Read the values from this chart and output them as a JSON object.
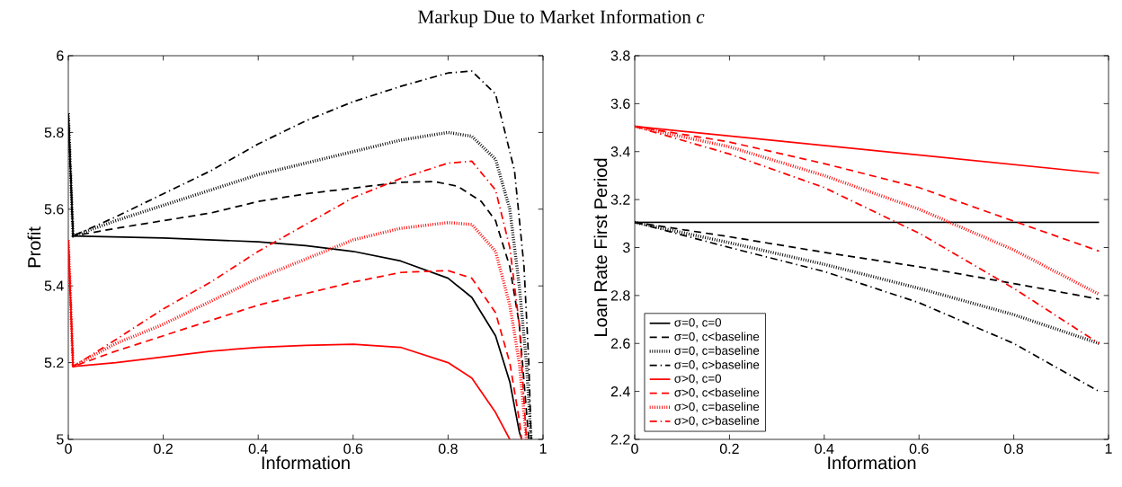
{
  "chart_data": [
    {
      "type": "line",
      "title": "Markup Due to Market Information *c*",
      "xlabel": "Information",
      "ylabel": "Profit",
      "xlim": [
        0,
        1
      ],
      "ylim": [
        5,
        6
      ],
      "xticks": [
        0,
        0.2,
        0.4,
        0.6,
        0.8,
        1
      ],
      "yticks": [
        5,
        5.2,
        5.4,
        5.6,
        5.8,
        6
      ],
      "grid": false,
      "legend": false,
      "series": [
        {
          "color": "#000000",
          "line_style": "solid",
          "x": [
            0,
            0.01,
            0.2,
            0.4,
            0.5,
            0.6,
            0.7,
            0.8,
            0.85,
            0.9,
            0.93,
            0.95,
            0.955
          ],
          "values": [
            5.85,
            5.53,
            5.525,
            5.515,
            5.505,
            5.49,
            5.465,
            5.42,
            5.37,
            5.27,
            5.15,
            5.02,
            5.0
          ]
        },
        {
          "color": "#000000",
          "line_style": "dashed",
          "x": [
            0,
            0.01,
            0.1,
            0.2,
            0.3,
            0.4,
            0.5,
            0.6,
            0.7,
            0.77,
            0.82,
            0.87,
            0.9,
            0.93,
            0.95,
            0.96,
            0.97
          ],
          "values": [
            5.85,
            5.53,
            5.55,
            5.57,
            5.59,
            5.62,
            5.64,
            5.655,
            5.67,
            5.672,
            5.66,
            5.62,
            5.57,
            5.45,
            5.3,
            5.15,
            5.0
          ]
        },
        {
          "color": "#000000",
          "line_style": "dotted",
          "x": [
            0,
            0.01,
            0.1,
            0.2,
            0.3,
            0.4,
            0.5,
            0.6,
            0.7,
            0.8,
            0.85,
            0.9,
            0.93,
            0.95,
            0.965,
            0.975
          ],
          "values": [
            5.85,
            5.53,
            5.57,
            5.61,
            5.65,
            5.69,
            5.72,
            5.75,
            5.78,
            5.8,
            5.79,
            5.73,
            5.6,
            5.4,
            5.2,
            5.0
          ]
        },
        {
          "color": "#000000",
          "line_style": "dashdot",
          "x": [
            0,
            0.01,
            0.1,
            0.2,
            0.3,
            0.4,
            0.5,
            0.6,
            0.7,
            0.8,
            0.85,
            0.9,
            0.94,
            0.96,
            0.97,
            0.975
          ],
          "values": [
            5.85,
            5.53,
            5.58,
            5.64,
            5.7,
            5.77,
            5.83,
            5.88,
            5.92,
            5.955,
            5.96,
            5.9,
            5.7,
            5.45,
            5.2,
            5.0
          ]
        },
        {
          "color": "#ff0000",
          "line_style": "solid",
          "x": [
            0,
            0.01,
            0.1,
            0.2,
            0.3,
            0.4,
            0.5,
            0.6,
            0.7,
            0.8,
            0.85,
            0.9,
            0.93
          ],
          "values": [
            5.52,
            5.19,
            5.2,
            5.215,
            5.23,
            5.24,
            5.245,
            5.248,
            5.24,
            5.2,
            5.16,
            5.07,
            5.0
          ]
        },
        {
          "color": "#ff0000",
          "line_style": "dashed",
          "x": [
            0,
            0.01,
            0.1,
            0.2,
            0.3,
            0.4,
            0.5,
            0.6,
            0.7,
            0.8,
            0.85,
            0.9,
            0.93,
            0.95,
            0.955
          ],
          "values": [
            5.52,
            5.19,
            5.23,
            5.27,
            5.31,
            5.35,
            5.38,
            5.41,
            5.435,
            5.44,
            5.42,
            5.33,
            5.2,
            5.05,
            5.0
          ]
        },
        {
          "color": "#ff0000",
          "line_style": "dotted",
          "x": [
            0,
            0.01,
            0.1,
            0.2,
            0.3,
            0.4,
            0.5,
            0.6,
            0.7,
            0.8,
            0.85,
            0.9,
            0.93,
            0.95,
            0.965
          ],
          "values": [
            5.52,
            5.19,
            5.25,
            5.3,
            5.36,
            5.42,
            5.47,
            5.52,
            5.55,
            5.565,
            5.56,
            5.49,
            5.35,
            5.2,
            5.0
          ]
        },
        {
          "color": "#ff0000",
          "line_style": "dashdot",
          "x": [
            0,
            0.01,
            0.1,
            0.2,
            0.3,
            0.4,
            0.5,
            0.6,
            0.7,
            0.8,
            0.85,
            0.9,
            0.93,
            0.95,
            0.965
          ],
          "values": [
            5.52,
            5.19,
            5.26,
            5.34,
            5.41,
            5.49,
            5.56,
            5.63,
            5.68,
            5.72,
            5.725,
            5.65,
            5.5,
            5.3,
            5.0
          ]
        }
      ]
    },
    {
      "type": "line",
      "xlabel": "Information",
      "ylabel": "Loan Rate First Period",
      "xlim": [
        0,
        1
      ],
      "ylim": [
        2.2,
        3.8
      ],
      "xticks": [
        0,
        0.2,
        0.4,
        0.6,
        0.8,
        1
      ],
      "yticks": [
        2.2,
        2.4,
        2.6,
        2.8,
        3,
        3.2,
        3.4,
        3.6,
        3.8
      ],
      "grid": false,
      "legend": "bottom left",
      "series": [
        {
          "name": "σ=0, c=0",
          "color": "#000000",
          "line_style": "solid",
          "x": [
            0,
            0.98
          ],
          "values": [
            3.105,
            3.105
          ]
        },
        {
          "name": "σ=0, c<baseline",
          "color": "#000000",
          "line_style": "dashed",
          "x": [
            0,
            0.2,
            0.4,
            0.6,
            0.8,
            0.98
          ],
          "values": [
            3.105,
            3.045,
            2.98,
            2.92,
            2.85,
            2.785
          ]
        },
        {
          "name": "σ=0, c=baseline",
          "color": "#000000",
          "line_style": "dotted",
          "x": [
            0,
            0.2,
            0.4,
            0.6,
            0.8,
            0.98
          ],
          "values": [
            3.105,
            3.02,
            2.93,
            2.83,
            2.72,
            2.6
          ]
        },
        {
          "name": "σ=0, c>baseline",
          "color": "#000000",
          "line_style": "dashdot",
          "x": [
            0,
            0.2,
            0.4,
            0.6,
            0.8,
            0.98
          ],
          "values": [
            3.105,
            3.0,
            2.9,
            2.77,
            2.6,
            2.4
          ]
        },
        {
          "name": "σ>0, c=0",
          "color": "#ff0000",
          "line_style": "solid",
          "x": [
            0,
            0.98
          ],
          "values": [
            3.505,
            3.31
          ]
        },
        {
          "name": "σ>0, c<baseline",
          "color": "#ff0000",
          "line_style": "dashed",
          "x": [
            0,
            0.2,
            0.4,
            0.6,
            0.8,
            0.98
          ],
          "values": [
            3.505,
            3.44,
            3.35,
            3.25,
            3.11,
            2.985
          ]
        },
        {
          "name": "σ>0, c=baseline",
          "color": "#ff0000",
          "line_style": "dotted",
          "x": [
            0,
            0.2,
            0.4,
            0.6,
            0.8,
            0.98
          ],
          "values": [
            3.505,
            3.42,
            3.3,
            3.16,
            2.99,
            2.805
          ]
        },
        {
          "name": "σ>0, c>baseline",
          "color": "#ff0000",
          "line_style": "dashdot",
          "x": [
            0,
            0.2,
            0.4,
            0.6,
            0.8,
            0.98
          ],
          "values": [
            3.505,
            3.39,
            3.25,
            3.06,
            2.83,
            2.6
          ]
        }
      ]
    }
  ]
}
